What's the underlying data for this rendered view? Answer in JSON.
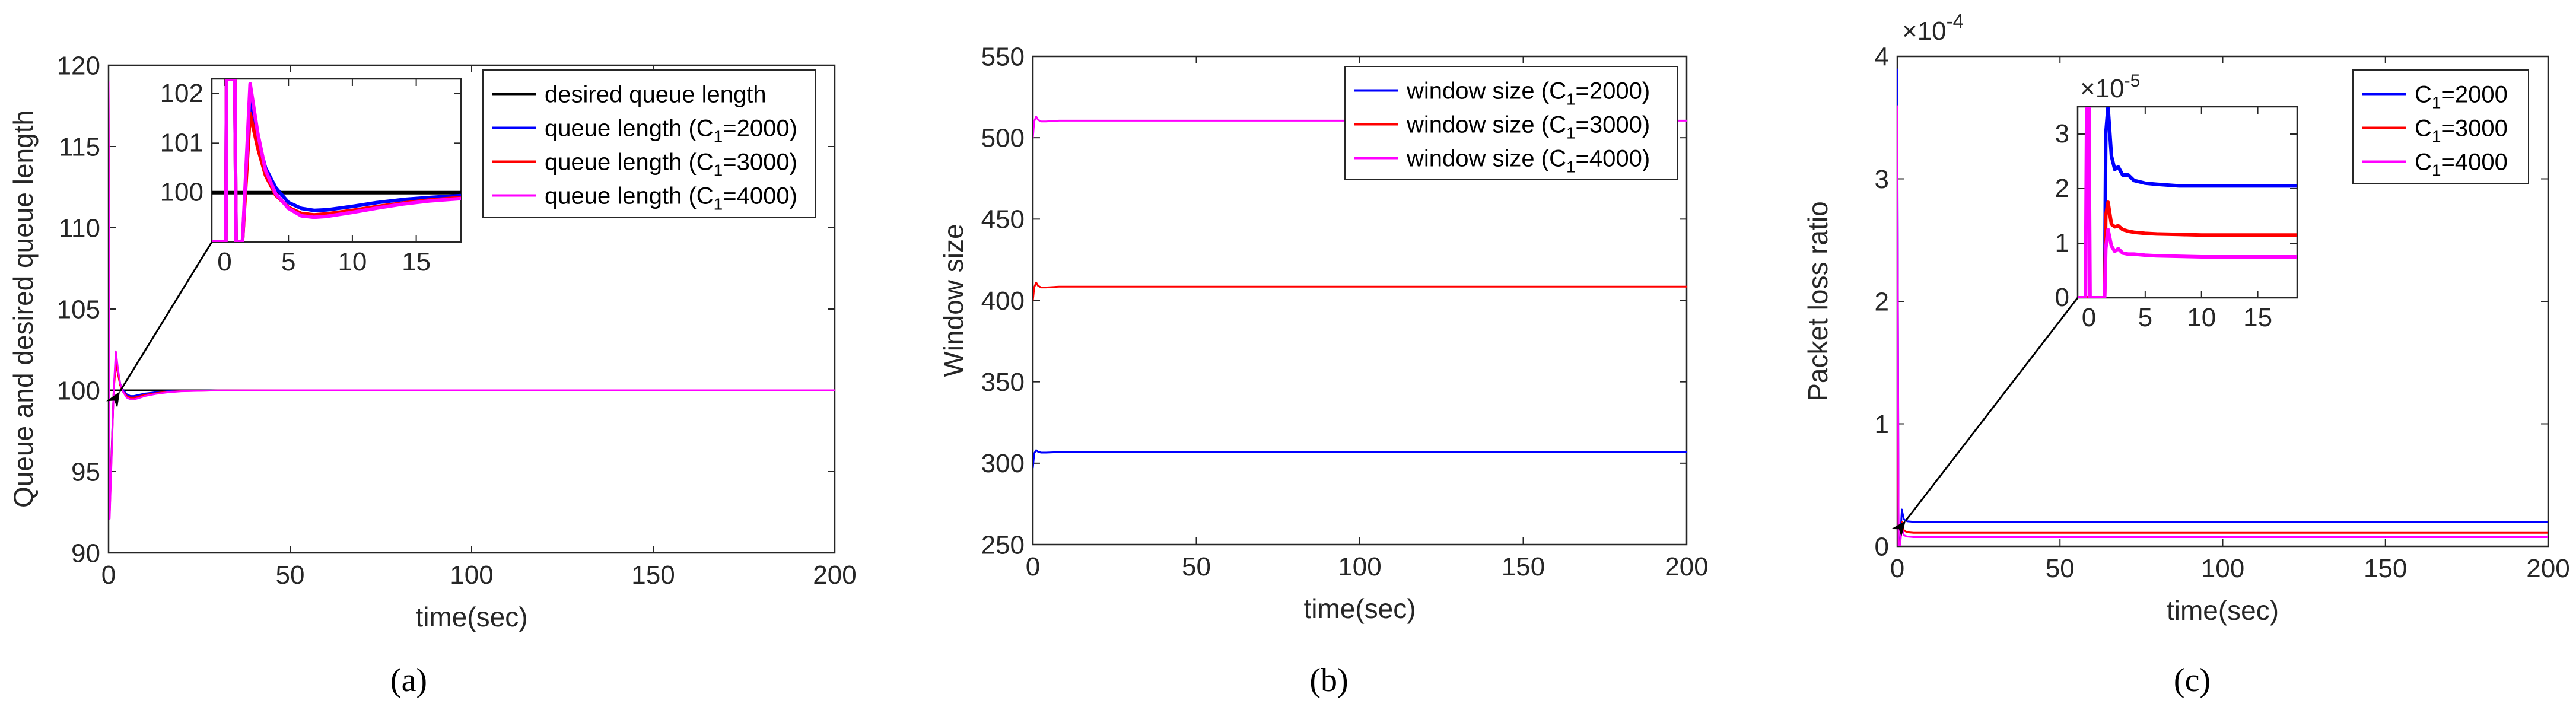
{
  "chart_data": [
    {
      "panel": "(a)",
      "type": "line",
      "xlabel": "time(sec)",
      "ylabel": "Queue and desired queue length",
      "xlim": [
        0,
        200
      ],
      "ylim": [
        90,
        120
      ],
      "xticks": [
        0,
        50,
        100,
        150,
        200
      ],
      "yticks": [
        90,
        95,
        100,
        105,
        110,
        115,
        120
      ],
      "series": [
        {
          "name": "desired queue length",
          "color": "#000000",
          "x": [
            0,
            200
          ],
          "y": [
            100,
            100
          ]
        },
        {
          "name": "queue length (C1=2000)",
          "color": "#0000ff",
          "x": [
            0,
            0.3,
            0.8,
            1.4,
            2,
            2.6,
            3.2,
            4,
            5,
            6,
            7,
            8,
            10,
            13,
            16,
            20,
            30,
            50
          ],
          "y": [
            118.5,
            92.5,
            96,
            100,
            102,
            101.2,
            100.4,
            100,
            99.75,
            99.65,
            99.65,
            99.7,
            99.8,
            99.88,
            99.93,
            99.97,
            99.99,
            100
          ]
        },
        {
          "name": "queue length (C1=3000)",
          "color": "#ff0000",
          "x": [
            0,
            0.3,
            0.8,
            1.4,
            2,
            2.6,
            3.2,
            4,
            5,
            6,
            7,
            8,
            10,
            13,
            16,
            20,
            30,
            50
          ],
          "y": [
            118.8,
            92.3,
            95.8,
            100,
            101.6,
            101,
            100.3,
            99.9,
            99.65,
            99.55,
            99.55,
            99.6,
            99.72,
            99.82,
            99.9,
            99.95,
            99.99,
            100
          ]
        },
        {
          "name": "queue length (C1=4000)",
          "color": "#ff00ff",
          "x": [
            0,
            0.3,
            0.8,
            1.4,
            2,
            2.6,
            3.2,
            4,
            5,
            6,
            7,
            8,
            10,
            13,
            16,
            20,
            30,
            50,
            200
          ],
          "y": [
            119,
            92.1,
            95.6,
            100,
            102.4,
            101.3,
            100.4,
            99.9,
            99.55,
            99.45,
            99.45,
            99.5,
            99.65,
            99.78,
            99.87,
            99.94,
            99.99,
            100,
            100
          ]
        }
      ],
      "inset": {
        "xlim": [
          -1,
          18.5
        ],
        "ylim": [
          99.0,
          102.3
        ],
        "xticks": [
          0,
          5,
          10,
          15
        ],
        "yticks": [
          100,
          101,
          102
        ],
        "series": [
          {
            "name": "desired",
            "color": "#000000",
            "x": [
              -1,
              18.5
            ],
            "y": [
              100,
              100
            ]
          },
          {
            "name": "C1=2000",
            "color": "#0000ff",
            "x": [
              -1,
              0.1,
              0.15,
              0.8,
              0.9,
              1.4,
              2,
              2.6,
              3.2,
              4,
              5,
              6,
              7,
              8,
              10,
              12,
              14,
              16,
              18.5
            ],
            "y": [
              99.0,
              99.0,
              102.3,
              102.3,
              99.0,
              99.0,
              101.9,
              101.1,
              100.5,
              100.1,
              99.8,
              99.68,
              99.64,
              99.65,
              99.72,
              99.8,
              99.86,
              99.9,
              99.94
            ]
          },
          {
            "name": "C1=3000",
            "color": "#ff0000",
            "x": [
              -1,
              0.1,
              0.15,
              0.8,
              0.9,
              1.4,
              2,
              2.6,
              3.2,
              4,
              5,
              6,
              7,
              8,
              10,
              12,
              14,
              16,
              18.5
            ],
            "y": [
              99.0,
              99.0,
              102.3,
              102.3,
              99.0,
              99.0,
              101.6,
              100.9,
              100.35,
              99.95,
              99.7,
              99.58,
              99.55,
              99.57,
              99.64,
              99.72,
              99.79,
              99.85,
              99.9
            ]
          },
          {
            "name": "C1=4000",
            "color": "#ff00ff",
            "x": [
              -1,
              0.1,
              0.15,
              0.8,
              0.9,
              1.4,
              2,
              2.6,
              3.2,
              4,
              5,
              6,
              7,
              8,
              10,
              12,
              14,
              16,
              18.5
            ],
            "y": [
              99.0,
              99.0,
              102.3,
              102.3,
              99.0,
              99.0,
              102.2,
              101.2,
              100.45,
              99.98,
              99.68,
              99.53,
              99.5,
              99.52,
              99.6,
              99.69,
              99.77,
              99.83,
              99.88
            ]
          }
        ]
      },
      "legend": [
        {
          "label": "desired queue length",
          "color": "#000000"
        },
        {
          "label": "queue length (C",
          "sub": "1",
          "suffix": "=2000)",
          "color": "#0000ff"
        },
        {
          "label": "queue length (C",
          "sub": "1",
          "suffix": "=3000)",
          "color": "#ff0000"
        },
        {
          "label": "queue length (C",
          "sub": "1",
          "suffix": "=4000)",
          "color": "#ff00ff"
        }
      ],
      "legend_location": "top-right"
    },
    {
      "panel": "(b)",
      "type": "line",
      "xlabel": "time(sec)",
      "ylabel": "Window size",
      "xlim": [
        0,
        200
      ],
      "ylim": [
        250,
        550
      ],
      "xticks": [
        0,
        50,
        100,
        150,
        200
      ],
      "yticks": [
        250,
        300,
        350,
        400,
        450,
        500,
        550
      ],
      "series": [
        {
          "name": "window size (C1=2000)",
          "color": "#0000ff",
          "x": [
            0,
            0.4,
            1,
            1.6,
            2.5,
            4,
            8,
            200
          ],
          "y": [
            297,
            306,
            308,
            307,
            306.5,
            306.5,
            306.8,
            306.8
          ]
        },
        {
          "name": "window size (C1=3000)",
          "color": "#ff0000",
          "x": [
            0,
            0.4,
            1,
            1.6,
            2.5,
            4,
            8,
            200
          ],
          "y": [
            400,
            408,
            411,
            409,
            408,
            408,
            408.5,
            408.5
          ]
        },
        {
          "name": "window size (C1=4000)",
          "color": "#ff00ff",
          "x": [
            0,
            0.4,
            1,
            1.6,
            2.5,
            4,
            8,
            200
          ],
          "y": [
            500,
            510,
            513,
            511,
            510,
            510,
            510.5,
            510.5
          ]
        }
      ],
      "legend": [
        {
          "label": "window size (C",
          "sub": "1",
          "suffix": "=2000)",
          "color": "#0000ff"
        },
        {
          "label": "window size (C",
          "sub": "1",
          "suffix": "=3000)",
          "color": "#ff0000"
        },
        {
          "label": "window size (C",
          "sub": "1",
          "suffix": "=4000)",
          "color": "#ff00ff"
        }
      ],
      "legend_location": "top-right"
    },
    {
      "panel": "(c)",
      "type": "line",
      "xlabel": "time(sec)",
      "ylabel": "Packet loss ratio",
      "xlim": [
        0,
        200
      ],
      "ylim": [
        0,
        4
      ],
      "xticks": [
        0,
        50,
        100,
        150,
        200
      ],
      "yticks": [
        0,
        1,
        2,
        3,
        4
      ],
      "yscale_label": "×10",
      "yscale_exp": "-4",
      "series": [
        {
          "name": "C1=2000",
          "color": "#0000ff",
          "x": [
            0,
            0.4,
            0.8,
            1.4,
            2,
            3,
            5,
            200
          ],
          "y": [
            3.9,
            0,
            0,
            0.3,
            0.22,
            0.205,
            0.2,
            0.2
          ]
        },
        {
          "name": "C1=3000",
          "color": "#ff0000",
          "x": [
            0,
            0.4,
            0.8,
            1.4,
            2,
            3,
            5,
            200
          ],
          "y": [
            1.5,
            0,
            0,
            0.2,
            0.13,
            0.115,
            0.11,
            0.11
          ]
        },
        {
          "name": "C1=4000",
          "color": "#ff00ff",
          "x": [
            0,
            0.4,
            0.8,
            1.4,
            2,
            3,
            5,
            200
          ],
          "y": [
            3.6,
            0,
            0,
            0.15,
            0.09,
            0.08,
            0.075,
            0.075
          ]
        }
      ],
      "inset": {
        "xlim": [
          -1,
          18.5
        ],
        "ylim": [
          0,
          3.5
        ],
        "xticks": [
          0,
          5,
          10,
          15
        ],
        "yticks": [
          0,
          1,
          2,
          3
        ],
        "yscale_label": "×10",
        "yscale_exp": "-5",
        "series": [
          {
            "name": "C1=2000",
            "color": "#0000ff",
            "x": [
              -1,
              0,
              1.4,
              1.5,
              1.7,
              2,
              2.3,
              2.6,
              3,
              3.5,
              4,
              5,
              6,
              8,
              10,
              18.5
            ],
            "y": [
              0,
              0,
              0,
              3.0,
              3.5,
              2.6,
              2.35,
              2.4,
              2.25,
              2.25,
              2.15,
              2.1,
              2.08,
              2.05,
              2.05,
              2.05
            ]
          },
          {
            "name": "C1=3000",
            "color": "#ff0000",
            "x": [
              -1,
              0,
              1.4,
              1.5,
              1.7,
              2,
              2.3,
              2.6,
              3,
              3.5,
              4,
              5,
              6,
              8,
              10,
              18.5
            ],
            "y": [
              0,
              0,
              0,
              1.5,
              1.75,
              1.35,
              1.3,
              1.32,
              1.25,
              1.22,
              1.2,
              1.18,
              1.17,
              1.16,
              1.15,
              1.15
            ]
          },
          {
            "name": "C1=4000",
            "color": "#ff00ff",
            "x": [
              -1,
              -0.3,
              -0.2,
              0,
              0.1,
              1.4,
              1.5,
              1.7,
              2,
              2.3,
              2.6,
              3,
              3.5,
              4,
              5,
              6,
              8,
              10,
              18.5
            ],
            "y": [
              0,
              0,
              3.5,
              3.5,
              0,
              0,
              0.9,
              1.25,
              0.95,
              0.85,
              0.9,
              0.82,
              0.8,
              0.8,
              0.78,
              0.77,
              0.76,
              0.75,
              0.75
            ]
          }
        ]
      },
      "legend": [
        {
          "label": "C",
          "sub": "1",
          "suffix": "=2000",
          "color": "#0000ff"
        },
        {
          "label": "C",
          "sub": "1",
          "suffix": "=3000",
          "color": "#ff0000"
        },
        {
          "label": "C",
          "sub": "1",
          "suffix": "=4000",
          "color": "#ff00ff"
        }
      ],
      "legend_location": "top-right"
    }
  ]
}
